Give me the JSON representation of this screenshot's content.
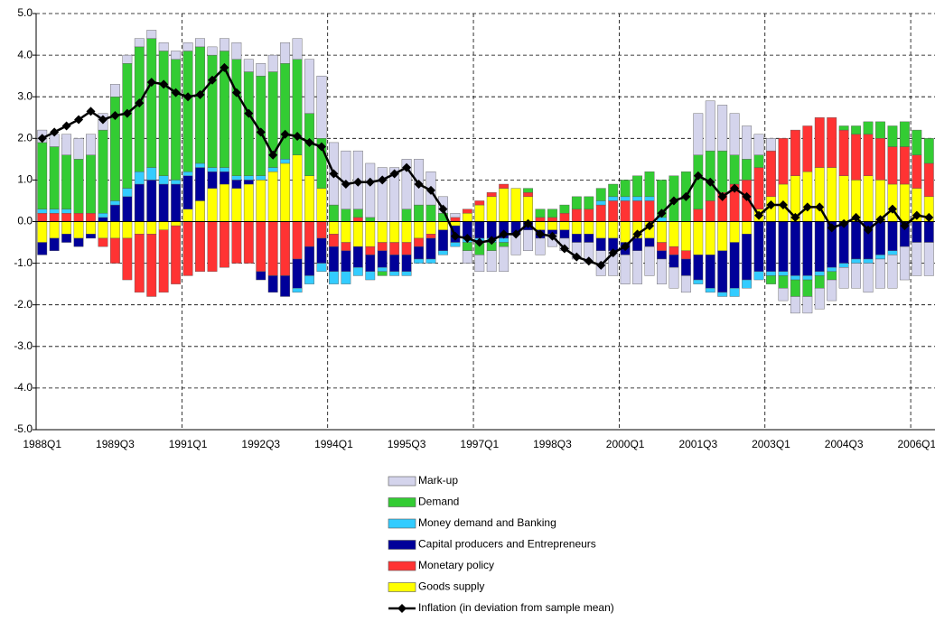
{
  "chart_data": {
    "type": "stacked_bar_line",
    "categories": [
      "1988Q1",
      null,
      null,
      null,
      null,
      null,
      "1989Q3",
      null,
      null,
      null,
      null,
      null,
      "1991Q1",
      null,
      null,
      null,
      null,
      null,
      "1992Q3",
      null,
      null,
      null,
      null,
      null,
      "1994Q1",
      null,
      null,
      null,
      null,
      null,
      "1995Q3",
      null,
      null,
      null,
      null,
      null,
      "1997Q1",
      null,
      null,
      null,
      null,
      null,
      "1998Q3",
      null,
      null,
      null,
      null,
      null,
      "2000Q1",
      null,
      null,
      null,
      null,
      null,
      "2001Q3",
      null,
      null,
      null,
      null,
      null,
      "2003Q1",
      null,
      null,
      null,
      null,
      null,
      "2004Q3",
      null,
      null,
      null,
      null,
      null,
      "2006Q1",
      null
    ],
    "series": [
      {
        "name": "Mark-up",
        "color": "#d4d4ec",
        "values": [
          0.3,
          0.3,
          0.5,
          0.5,
          0.5,
          0.4,
          0.3,
          0.2,
          0.2,
          0.2,
          0.2,
          0.2,
          0.2,
          0.2,
          0.2,
          0.3,
          0.4,
          0.3,
          0.3,
          0.4,
          0.5,
          0.5,
          1.3,
          1.5,
          1.5,
          1.4,
          1.4,
          1.3,
          1.3,
          1.3,
          1.2,
          1.1,
          0.8,
          0.4,
          0.1,
          -0.3,
          -0.4,
          -0.5,
          -0.6,
          -0.5,
          -0.5,
          -0.4,
          -0.3,
          -0.3,
          -0.4,
          -0.5,
          -0.6,
          -0.6,
          -0.7,
          -0.8,
          -0.7,
          -0.6,
          -0.5,
          -0.4,
          1.0,
          1.2,
          1.1,
          1.0,
          0.8,
          0.5,
          0.3,
          -0.3,
          -0.4,
          -0.4,
          -0.5,
          -0.5,
          -0.5,
          -0.6,
          -0.7,
          -0.7,
          -0.8,
          -0.8,
          -0.8,
          -0.8
        ]
      },
      {
        "name": "Demand",
        "color": "#33cc33",
        "values": [
          1.6,
          1.5,
          1.3,
          1.3,
          1.4,
          2.0,
          2.5,
          3.0,
          3.0,
          3.1,
          3.0,
          2.9,
          2.9,
          2.8,
          2.7,
          2.8,
          2.8,
          2.5,
          2.4,
          2.3,
          2.3,
          2.3,
          1.5,
          1.2,
          0.4,
          0.3,
          0.2,
          0.1,
          -0.1,
          0.0,
          0.3,
          0.4,
          0.4,
          0.2,
          0.0,
          -0.2,
          -0.3,
          -0.2,
          -0.1,
          0.0,
          0.1,
          0.2,
          0.2,
          0.2,
          0.3,
          0.3,
          0.3,
          0.3,
          0.4,
          0.5,
          0.6,
          0.9,
          1.1,
          1.2,
          1.3,
          1.2,
          1.0,
          0.7,
          0.5,
          0.3,
          -0.2,
          -0.3,
          -0.4,
          -0.4,
          -0.3,
          -0.2,
          0.1,
          0.2,
          0.3,
          0.4,
          0.5,
          0.6,
          0.6,
          0.6
        ]
      },
      {
        "name": "Money demand and Banking",
        "color": "#33ccff",
        "values": [
          0.1,
          0.1,
          0.1,
          0.0,
          0.0,
          0.1,
          0.1,
          0.2,
          0.3,
          0.3,
          0.2,
          0.1,
          0.1,
          0.1,
          0.1,
          0.1,
          0.1,
          0.1,
          0.1,
          0.1,
          0.1,
          -0.1,
          -0.2,
          -0.2,
          -0.3,
          -0.3,
          -0.2,
          -0.2,
          -0.1,
          -0.1,
          -0.1,
          -0.1,
          -0.1,
          -0.1,
          -0.1,
          -0.1,
          -0.1,
          -0.1,
          -0.1,
          0.0,
          0.0,
          0.0,
          0.0,
          0.0,
          0.0,
          0.0,
          0.1,
          0.1,
          0.1,
          0.1,
          0.1,
          0.1,
          0.0,
          0.0,
          -0.1,
          -0.1,
          -0.1,
          -0.2,
          -0.2,
          -0.2,
          -0.1,
          -0.1,
          -0.1,
          -0.1,
          -0.1,
          -0.1,
          -0.1,
          -0.1,
          -0.1,
          -0.1,
          -0.1,
          0.0,
          0.0,
          0.0
        ]
      },
      {
        "name": "Capital producers and Entrepreneurs",
        "color": "#000099",
        "values": [
          -0.3,
          -0.3,
          -0.2,
          -0.2,
          -0.1,
          0.1,
          0.4,
          0.6,
          0.9,
          1.0,
          0.9,
          0.9,
          0.8,
          0.8,
          0.4,
          0.3,
          0.2,
          0.1,
          -0.2,
          -0.4,
          -0.5,
          -0.7,
          -0.7,
          -0.6,
          -0.6,
          -0.5,
          -0.5,
          -0.4,
          -0.4,
          -0.4,
          -0.4,
          -0.3,
          -0.5,
          -0.5,
          -0.4,
          -0.4,
          -0.4,
          -0.4,
          -0.4,
          -0.3,
          -0.2,
          -0.2,
          -0.1,
          -0.2,
          -0.2,
          -0.2,
          -0.3,
          -0.3,
          -0.3,
          -0.3,
          -0.2,
          -0.2,
          -0.3,
          -0.4,
          -0.6,
          -0.8,
          -1.0,
          -1.1,
          -1.1,
          -1.2,
          -1.2,
          -1.2,
          -1.3,
          -1.3,
          -1.2,
          -1.1,
          -1.0,
          -0.9,
          -0.9,
          -0.8,
          -0.7,
          -0.6,
          -0.5,
          -0.5
        ]
      },
      {
        "name": "Monetary policy",
        "color": "#ff3333",
        "values": [
          0.2,
          0.2,
          0.2,
          0.2,
          0.2,
          -0.2,
          -0.6,
          -1.0,
          -1.4,
          -1.5,
          -1.5,
          -1.4,
          -1.3,
          -1.2,
          -1.2,
          -1.1,
          -1.0,
          -1.0,
          -1.2,
          -1.3,
          -1.3,
          -0.9,
          -0.6,
          -0.4,
          -0.3,
          -0.2,
          0.1,
          -0.2,
          -0.2,
          -0.3,
          -0.3,
          -0.2,
          -0.1,
          0.0,
          0.1,
          0.1,
          0.1,
          0.1,
          0.1,
          0.0,
          0.1,
          0.1,
          0.1,
          0.2,
          0.3,
          0.3,
          0.4,
          0.5,
          0.5,
          0.5,
          0.5,
          -0.2,
          -0.2,
          -0.2,
          0.3,
          0.5,
          0.7,
          0.9,
          1.0,
          1.0,
          1.1,
          1.1,
          1.1,
          1.1,
          1.2,
          1.2,
          1.1,
          1.1,
          1.0,
          1.0,
          0.9,
          0.9,
          0.8,
          0.8
        ]
      },
      {
        "name": "Goods supply",
        "color": "#ffff00",
        "values": [
          -0.5,
          -0.4,
          -0.3,
          -0.4,
          -0.3,
          -0.4,
          -0.4,
          -0.4,
          -0.3,
          -0.3,
          -0.2,
          -0.1,
          0.3,
          0.5,
          0.8,
          0.9,
          0.8,
          0.9,
          1.0,
          1.2,
          1.4,
          1.6,
          1.1,
          0.8,
          -0.3,
          -0.5,
          -0.6,
          -0.6,
          -0.5,
          -0.5,
          -0.5,
          -0.4,
          -0.3,
          -0.2,
          -0.1,
          0.2,
          0.4,
          0.6,
          0.8,
          0.8,
          0.6,
          -0.2,
          -0.2,
          -0.2,
          -0.3,
          -0.3,
          -0.4,
          -0.4,
          -0.5,
          -0.4,
          -0.4,
          -0.5,
          -0.6,
          -0.7,
          -0.8,
          -0.8,
          -0.7,
          -0.5,
          -0.3,
          0.3,
          0.6,
          0.9,
          1.1,
          1.2,
          1.3,
          1.3,
          1.1,
          1.0,
          1.1,
          1.0,
          0.9,
          0.9,
          0.8,
          0.6
        ]
      }
    ],
    "line": {
      "name": "Inflation (in deviation from sample mean)",
      "color": "#000000",
      "values": [
        2.0,
        2.15,
        2.3,
        2.45,
        2.65,
        2.45,
        2.55,
        2.6,
        2.85,
        3.35,
        3.3,
        3.1,
        3.0,
        3.05,
        3.4,
        3.7,
        3.1,
        2.6,
        2.15,
        1.6,
        2.1,
        2.05,
        1.9,
        1.8,
        1.15,
        0.9,
        0.95,
        0.95,
        1.0,
        1.15,
        1.3,
        0.9,
        0.75,
        0.3,
        -0.35,
        -0.4,
        -0.5,
        -0.45,
        -0.3,
        -0.3,
        -0.05,
        -0.3,
        -0.35,
        -0.65,
        -0.85,
        -0.95,
        -1.05,
        -0.75,
        -0.6,
        -0.3,
        -0.1,
        0.2,
        0.5,
        0.6,
        1.1,
        0.95,
        0.6,
        0.8,
        0.6,
        0.15,
        0.4,
        0.4,
        0.1,
        0.35,
        0.35,
        -0.15,
        -0.05,
        0.1,
        -0.2,
        0.05,
        0.3,
        -0.1,
        0.15,
        0.1
      ]
    },
    "ylim": [
      -5,
      5
    ],
    "yticks": [
      {
        "value": -5,
        "label": "-5.0"
      },
      {
        "value": -4,
        "label": "-4.0"
      },
      {
        "value": -3,
        "label": "-3.0"
      },
      {
        "value": -2,
        "label": "-2.0"
      },
      {
        "value": -1,
        "label": "-1.0"
      },
      {
        "value": 0,
        "label": "0.0"
      },
      {
        "value": 1,
        "label": "1.0"
      },
      {
        "value": 2,
        "label": "2.0"
      },
      {
        "value": 3,
        "label": "3.0"
      },
      {
        "value": 4,
        "label": "4.0"
      },
      {
        "value": 5,
        "label": "5.0"
      }
    ],
    "grid": true
  }
}
